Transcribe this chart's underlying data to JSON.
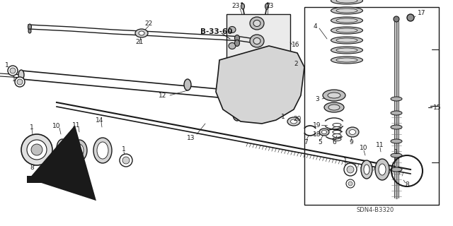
{
  "bg": "#ffffff",
  "lc": "#1a1a1a",
  "diagram_ref": "SDN4-B3320",
  "bold_label": "B-33-60",
  "fig_w": 6.4,
  "fig_h": 3.2,
  "dpi": 100
}
